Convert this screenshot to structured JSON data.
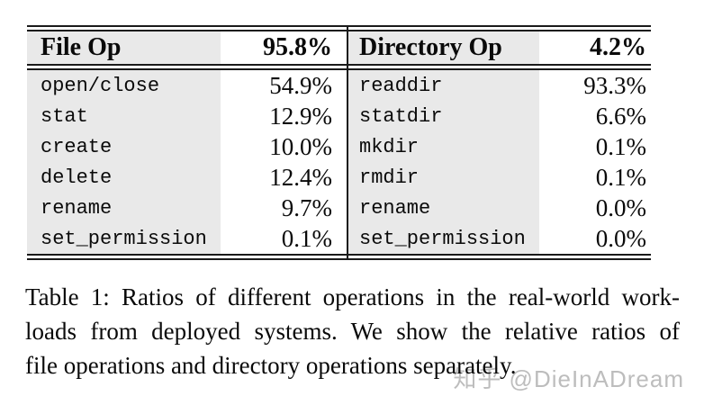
{
  "table": {
    "header": {
      "file_op": "File Op",
      "file_pct": "95.8%",
      "dir_op": "Directory Op",
      "dir_pct": "4.2%"
    },
    "rows": [
      {
        "file_op": "open/close",
        "file_pct": "54.9%",
        "dir_op": "readdir",
        "dir_pct": "93.3%"
      },
      {
        "file_op": "stat",
        "file_pct": "12.9%",
        "dir_op": "statdir",
        "dir_pct": "6.6%"
      },
      {
        "file_op": "create",
        "file_pct": "10.0%",
        "dir_op": "mkdir",
        "dir_pct": "0.1%"
      },
      {
        "file_op": "delete",
        "file_pct": "12.4%",
        "dir_op": "rmdir",
        "dir_pct": "0.1%"
      },
      {
        "file_op": "rename",
        "file_pct": "9.7%",
        "dir_op": "rename",
        "dir_pct": "0.0%"
      },
      {
        "file_op": "set_permission",
        "file_pct": "0.1%",
        "dir_op": "set_permission",
        "dir_pct": "0.0%"
      }
    ]
  },
  "caption": {
    "lines": [
      "Table 1:  Ratios of different operations in the real-world work-",
      "loads from deployed systems. We show the relative ratios of",
      "file operations and directory operations separately."
    ]
  },
  "watermark": {
    "text": "知乎 @DieInADream"
  },
  "colors": {
    "cell_gray": "#e9e9e9",
    "rule_black": "#1a1a1a",
    "text_black": "#0a0a0a",
    "watermark_gray": "#bdbdbd",
    "page_bg": "#ffffff"
  }
}
